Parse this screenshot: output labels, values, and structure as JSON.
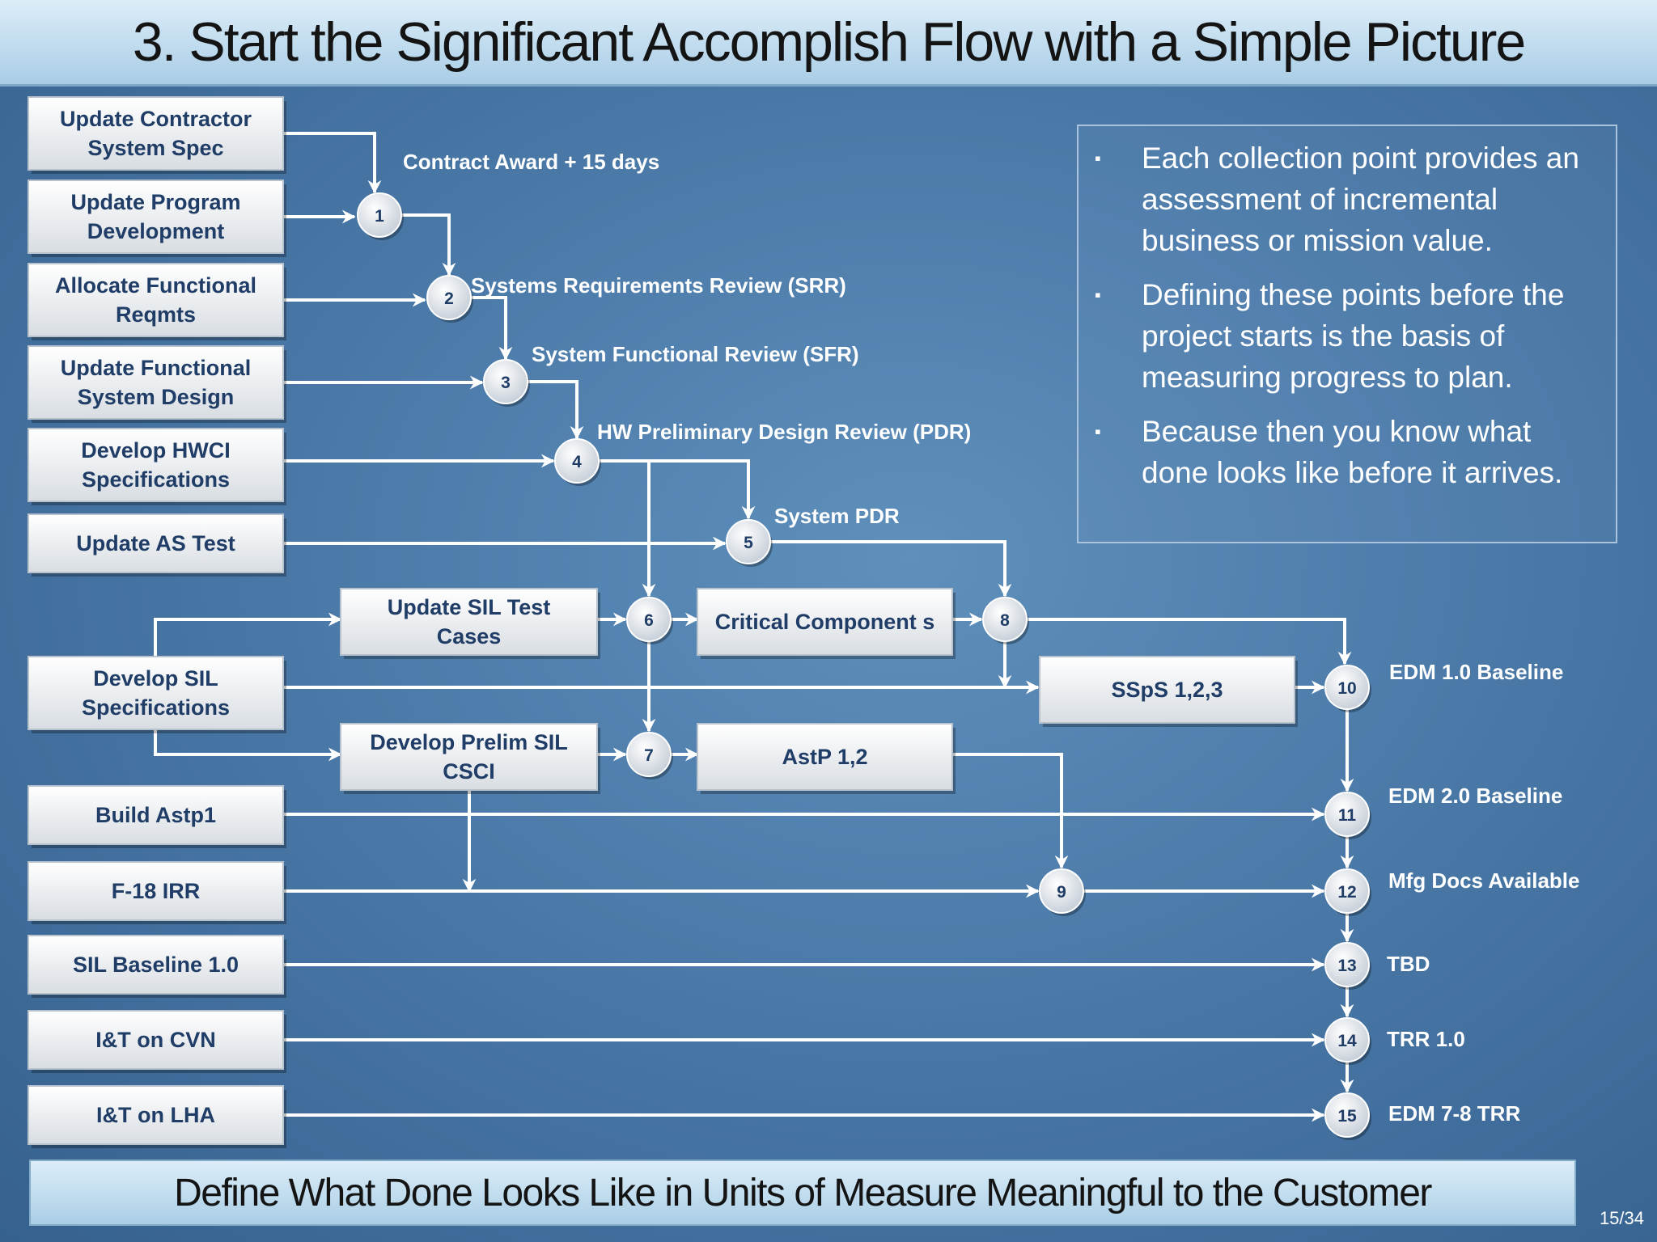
{
  "title": "3. Start the Significant Accomplish Flow with a Simple Picture",
  "footer": "Define What Done Looks Like in Units of Measure Meaningful to the Customer",
  "page_number": "15/34",
  "notes": [
    {
      "marker": "▪",
      "text": "Each collection point provides an assessment of incremental business or mission value."
    },
    {
      "marker": "▪",
      "text": "Defining these points before the project starts is the basis of measuring progress to plan."
    },
    {
      "marker": "▪",
      "text": "Because then you know what done looks like before it arrives."
    }
  ],
  "tasks": {
    "update_contractor_spec": [
      "Update Contractor",
      "System Spec"
    ],
    "update_program_dev": [
      "Update Program",
      "Development"
    ],
    "allocate_functional": [
      "Allocate Functional",
      "Reqmts"
    ],
    "update_functional_design": [
      "Update Functional",
      "System Design"
    ],
    "develop_hwci": [
      "Develop HWCI",
      "Specifications"
    ],
    "update_as_test": [
      "Update AS Test"
    ],
    "develop_sil_specs": [
      "Develop SIL",
      "Specifications"
    ],
    "build_astp1": [
      "Build Astp1"
    ],
    "f18_irr": [
      "F-18 IRR"
    ],
    "sil_baseline": [
      "SIL Baseline 1.0"
    ],
    "it_cvn": [
      "I&T on CVN"
    ],
    "it_lha": [
      "I&T on LHA"
    ],
    "update_sil_test_cases": [
      "Update SIL Test",
      "Cases"
    ],
    "develop_prelim_sil": [
      "Develop Prelim SIL",
      "CSCI"
    ],
    "critical_components": [
      "Critical Component s"
    ],
    "astp12": [
      "AstP 1,2"
    ],
    "ssps": [
      "SSpS 1,2,3"
    ]
  },
  "nodes": {
    "n1": "1",
    "n2": "2",
    "n3": "3",
    "n4": "4",
    "n5": "5",
    "n6": "6",
    "n7": "7",
    "n8": "8",
    "n9": "9",
    "n10": "10",
    "n11": "11",
    "n12": "12",
    "n13": "13",
    "n14": "14",
    "n15": "15"
  },
  "milestones": {
    "m1": "Contract Award + 15 days",
    "m2": "Systems Requirements Review (SRR)",
    "m3": "System Functional Review (SFR)",
    "m4": "HW Preliminary Design Review (PDR)",
    "m5": "System PDR",
    "m10": "EDM 1.0 Baseline",
    "m11": "EDM 2.0 Baseline",
    "m12": "Mfg Docs Available",
    "m13": "TBD",
    "m14": "TRR 1.0",
    "m15": "EDM 7-8 TRR"
  }
}
